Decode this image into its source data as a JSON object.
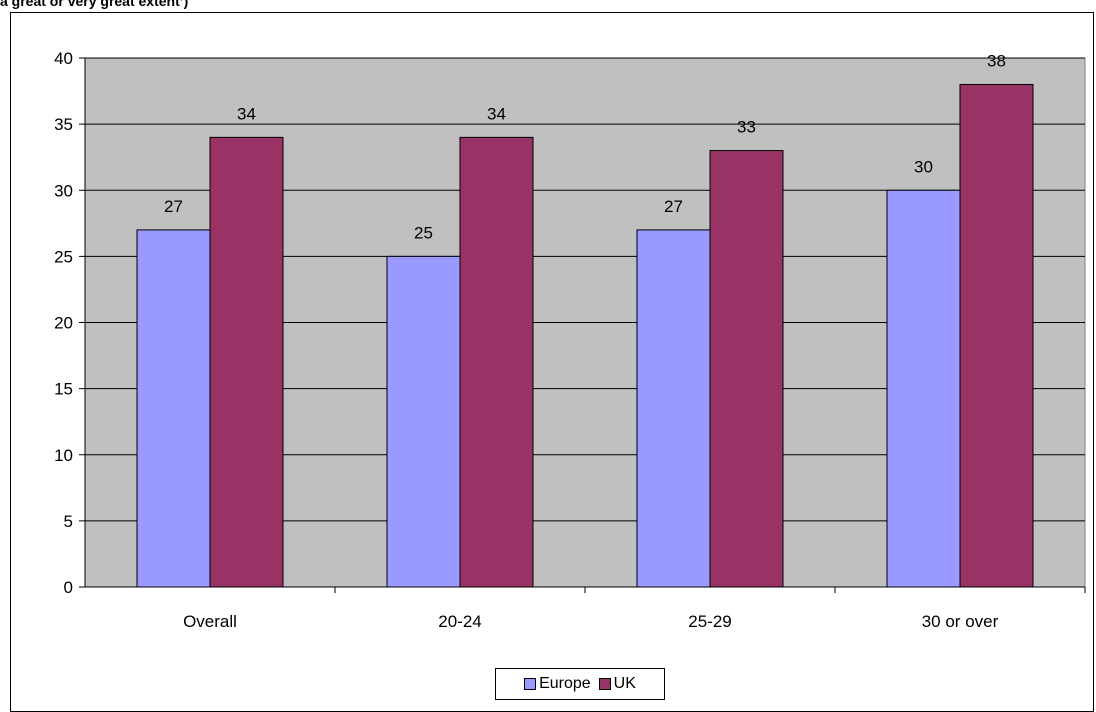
{
  "title": "a great or very great extent’)",
  "colors": {
    "plot_bg": "#c0c0c0",
    "europe": "#9999ff",
    "uk": "#993366"
  },
  "chart_data": {
    "type": "bar",
    "categories": [
      "Overall",
      "20-24",
      "25-29",
      "30 or over"
    ],
    "series": [
      {
        "name": "Europe",
        "values": [
          27,
          25,
          27,
          30
        ]
      },
      {
        "name": "UK",
        "values": [
          34,
          34,
          33,
          38
        ]
      }
    ],
    "ylim": [
      0,
      40
    ],
    "yticks": [
      0,
      5,
      10,
      15,
      20,
      25,
      30,
      35,
      40
    ],
    "grid": true,
    "legend": "bottom-center"
  }
}
